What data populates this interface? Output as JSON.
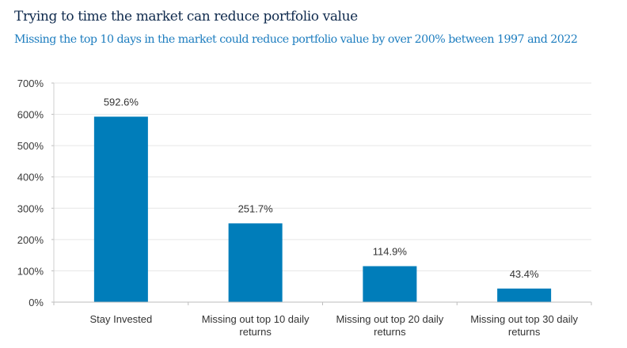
{
  "chart_data": {
    "type": "bar",
    "title": "Trying to time the market can reduce portfolio value",
    "subtitle": "Missing the top 10 days in the market could reduce portfolio value by over 200% between 1997 and 2022",
    "xlabel": "",
    "ylabel": "",
    "categories": [
      [
        "Stay Invested"
      ],
      [
        "Missing out top 10 daily",
        "returns"
      ],
      [
        "Missing out top 20 daily",
        "returns"
      ],
      [
        "Missing out top 30 daily",
        "returns"
      ]
    ],
    "values": [
      592.6,
      251.7,
      114.9,
      43.4
    ],
    "data_labels": [
      "592.6%",
      "251.7%",
      "114.9%",
      "43.4%"
    ],
    "ylim": [
      0,
      700
    ],
    "yticks": [
      0,
      100,
      200,
      300,
      400,
      500,
      600,
      700
    ],
    "ytick_labels": [
      "0%",
      "100%",
      "200%",
      "300%",
      "400%",
      "500%",
      "600%",
      "700%"
    ],
    "grid": true,
    "legend": "none",
    "bar_color": "#007dba"
  }
}
